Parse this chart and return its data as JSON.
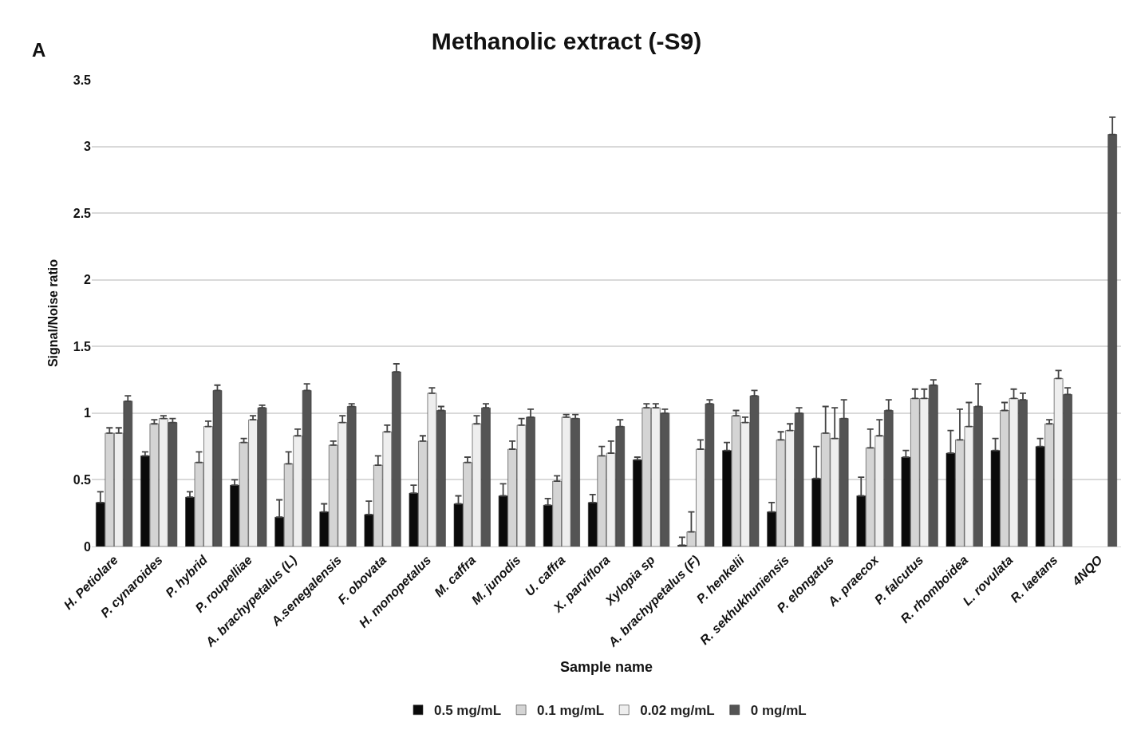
{
  "chart_data": {
    "type": "bar",
    "title": "Methanolic extract (-S9)",
    "xlabel": "Sample name",
    "ylabel": "Signal/Noise ratio",
    "annotations": [
      "A"
    ],
    "categories": [
      "H. Petiolare",
      "P. cynaroides",
      "P. hybrid",
      "P. roupelliae",
      "A. brachypetalus (L)",
      "A.senegalensis",
      "F. obovata",
      "H. monopetalus",
      "M. caffra",
      "M. junodis",
      "U. caffra",
      "X. parviflora",
      "Xylopia sp",
      "A. brachypetalus (F)",
      "P. henkelii",
      "R. sekhukhuniensis",
      "P. elongatus",
      "A. praecox",
      "P. falcutus",
      "R. rhomboidea",
      "L. rovulata",
      "R. laetans",
      "4NQO"
    ],
    "ylim": [
      0,
      3.5
    ],
    "yticks": [
      0,
      0.5,
      1,
      1.5,
      2,
      2.5,
      3,
      3.5
    ],
    "grid": "y",
    "legend": "bottom",
    "series": [
      {
        "name": "0.5 mg/mL",
        "color": "#0a0a0a",
        "values": [
          0.33,
          0.68,
          0.37,
          0.46,
          0.22,
          0.26,
          0.24,
          0.4,
          0.32,
          0.38,
          0.31,
          0.33,
          0.65,
          0.01,
          0.72,
          0.26,
          0.51,
          0.38,
          0.67,
          0.7,
          0.72,
          0.75,
          null
        ],
        "errors": [
          [
            0.33,
            0.41
          ],
          [
            0.68,
            0.71
          ],
          [
            0.37,
            0.41
          ],
          [
            0.46,
            0.5
          ],
          [
            0.22,
            0.35
          ],
          [
            0.26,
            0.32
          ],
          [
            0.24,
            0.34
          ],
          [
            0.4,
            0.46
          ],
          [
            0.32,
            0.38
          ],
          [
            0.38,
            0.47
          ],
          [
            0.31,
            0.36
          ],
          [
            0.33,
            0.39
          ],
          [
            0.65,
            0.67
          ],
          [
            0.01,
            0.07
          ],
          [
            0.72,
            0.78
          ],
          [
            0.26,
            0.33
          ],
          [
            0.51,
            0.75
          ],
          [
            0.38,
            0.52
          ],
          [
            0.67,
            0.72
          ],
          [
            0.7,
            0.87
          ],
          [
            0.72,
            0.81
          ],
          [
            0.75,
            0.81
          ],
          null
        ]
      },
      {
        "name": "0.1 mg/mL",
        "color": "#d4d4d4",
        "values": [
          0.85,
          0.92,
          0.63,
          0.78,
          0.62,
          0.76,
          0.61,
          0.79,
          0.63,
          0.73,
          0.49,
          0.68,
          1.04,
          0.11,
          0.98,
          0.8,
          0.85,
          0.74,
          1.11,
          0.8,
          1.02,
          0.92,
          null
        ],
        "errors": [
          [
            0.85,
            0.89
          ],
          [
            0.92,
            0.95
          ],
          [
            0.63,
            0.71
          ],
          [
            0.78,
            0.81
          ],
          [
            0.62,
            0.71
          ],
          [
            0.76,
            0.79
          ],
          [
            0.61,
            0.68
          ],
          [
            0.79,
            0.83
          ],
          [
            0.63,
            0.67
          ],
          [
            0.73,
            0.79
          ],
          [
            0.49,
            0.53
          ],
          [
            0.68,
            0.75
          ],
          [
            1.04,
            1.07
          ],
          [
            0.11,
            0.26
          ],
          [
            0.98,
            1.02
          ],
          [
            0.8,
            0.86
          ],
          [
            0.85,
            1.05
          ],
          [
            0.74,
            0.88
          ],
          [
            1.11,
            1.18
          ],
          [
            0.8,
            1.03
          ],
          [
            1.02,
            1.08
          ],
          [
            0.92,
            0.95
          ],
          null
        ]
      },
      {
        "name": "0.02 mg/mL",
        "color": "#eeeeee",
        "values": [
          0.85,
          0.96,
          0.9,
          0.95,
          0.83,
          0.93,
          0.86,
          1.15,
          0.92,
          0.91,
          0.97,
          0.7,
          1.04,
          0.73,
          0.93,
          0.87,
          0.81,
          0.83,
          1.11,
          0.9,
          1.11,
          1.26,
          null
        ],
        "errors": [
          [
            0.85,
            0.89
          ],
          [
            0.96,
            0.98
          ],
          [
            0.9,
            0.94
          ],
          [
            0.95,
            0.98
          ],
          [
            0.83,
            0.88
          ],
          [
            0.93,
            0.98
          ],
          [
            0.86,
            0.91
          ],
          [
            1.15,
            1.19
          ],
          [
            0.92,
            0.98
          ],
          [
            0.91,
            0.96
          ],
          [
            0.97,
            0.99
          ],
          [
            0.7,
            0.79
          ],
          [
            1.04,
            1.07
          ],
          [
            0.73,
            0.8
          ],
          [
            0.93,
            0.97
          ],
          [
            0.87,
            0.92
          ],
          [
            0.81,
            1.04
          ],
          [
            0.83,
            0.95
          ],
          [
            1.11,
            1.18
          ],
          [
            0.9,
            1.08
          ],
          [
            1.11,
            1.18
          ],
          [
            1.26,
            1.32
          ],
          null
        ]
      },
      {
        "name": "0 mg/mL",
        "color": "#545454",
        "values": [
          1.09,
          0.93,
          1.17,
          1.04,
          1.17,
          1.05,
          1.31,
          1.02,
          1.04,
          0.97,
          0.96,
          0.9,
          1.0,
          1.07,
          1.13,
          1.0,
          0.96,
          1.02,
          1.21,
          1.05,
          1.1,
          1.14,
          3.09
        ],
        "errors": [
          [
            1.09,
            1.13
          ],
          [
            0.93,
            0.96
          ],
          [
            1.17,
            1.21
          ],
          [
            1.04,
            1.06
          ],
          [
            1.17,
            1.22
          ],
          [
            1.05,
            1.07
          ],
          [
            1.31,
            1.37
          ],
          [
            1.02,
            1.05
          ],
          [
            1.04,
            1.07
          ],
          [
            0.97,
            1.03
          ],
          [
            0.96,
            0.99
          ],
          [
            0.9,
            0.95
          ],
          [
            1.0,
            1.03
          ],
          [
            1.07,
            1.1
          ],
          [
            1.13,
            1.17
          ],
          [
            1.0,
            1.04
          ],
          [
            0.96,
            1.1
          ],
          [
            1.02,
            1.1
          ],
          [
            1.21,
            1.25
          ],
          [
            1.05,
            1.22
          ],
          [
            1.1,
            1.15
          ],
          [
            1.14,
            1.19
          ],
          [
            3.09,
            3.22
          ]
        ]
      }
    ]
  }
}
